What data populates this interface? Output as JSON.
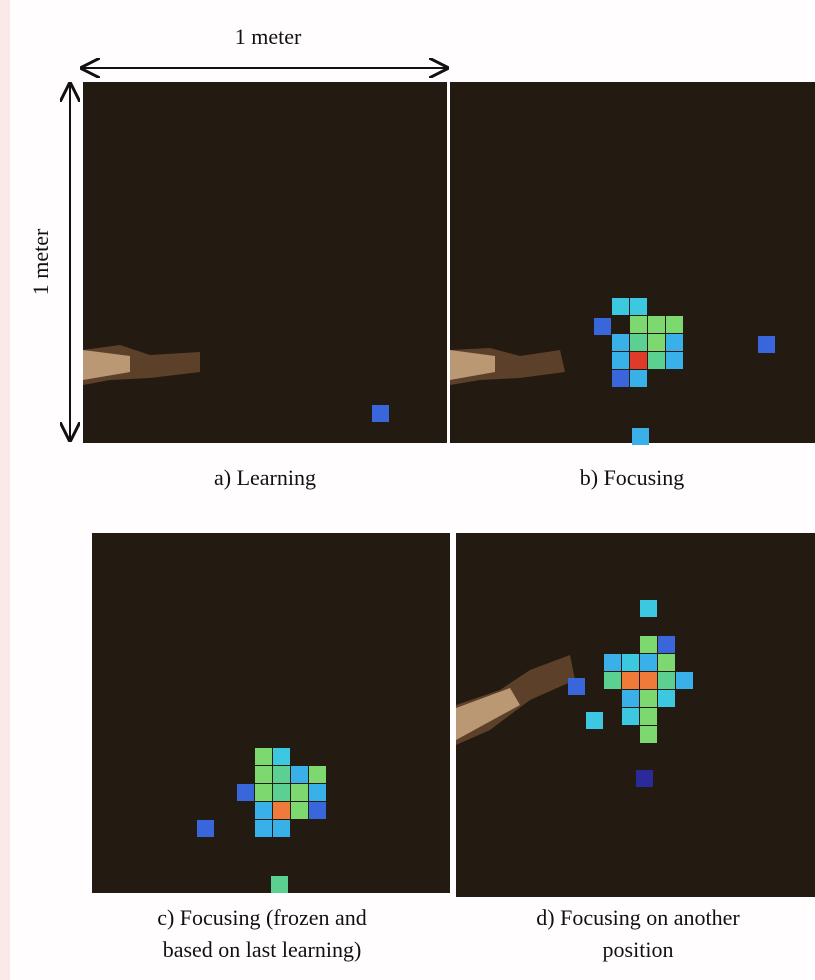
{
  "header": {
    "width_label": "1 meter",
    "height_label": "1 meter"
  },
  "panels": [
    {
      "caption_lines": [
        "a) Learning"
      ]
    },
    {
      "caption_lines": [
        "b) Focusing"
      ]
    },
    {
      "caption_lines": [
        "c) Focusing (frozen and",
        "based on last learning)"
      ]
    },
    {
      "caption_lines": [
        "d) Focusing on another",
        "position"
      ]
    }
  ]
}
